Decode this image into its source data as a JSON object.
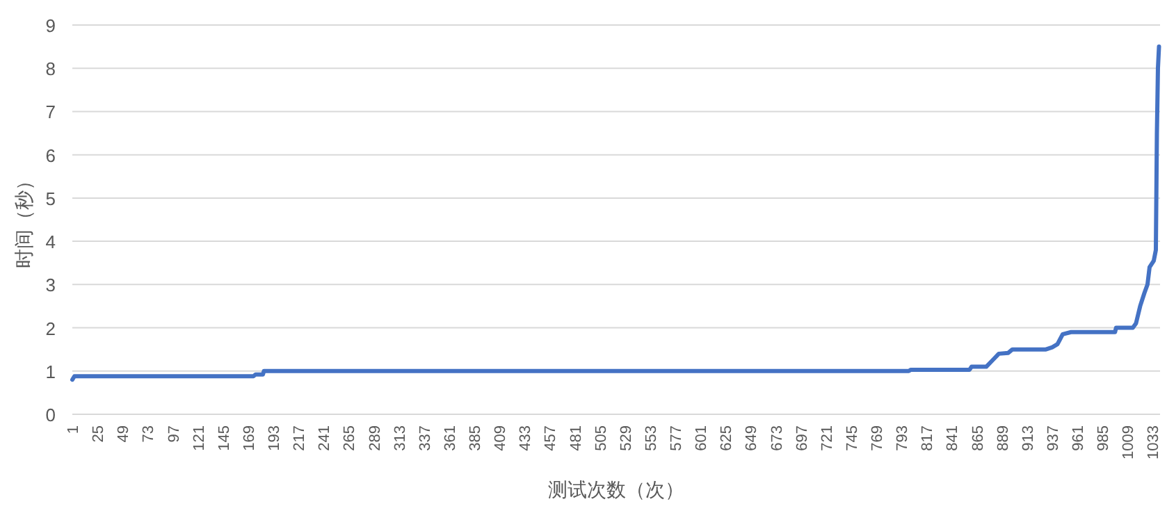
{
  "chart_data": {
    "type": "line",
    "xlabel": "测试次数（次）",
    "ylabel": "时间（秒）",
    "xlim": [
      1,
      1040
    ],
    "ylim": [
      0,
      9
    ],
    "xticks": [
      1,
      25,
      49,
      73,
      97,
      121,
      145,
      169,
      193,
      217,
      241,
      265,
      289,
      313,
      337,
      361,
      385,
      409,
      433,
      457,
      481,
      505,
      529,
      553,
      577,
      601,
      625,
      649,
      673,
      697,
      721,
      745,
      769,
      793,
      817,
      841,
      865,
      889,
      913,
      937,
      961,
      985,
      1009,
      1033
    ],
    "yticks": [
      0,
      1,
      2,
      3,
      4,
      5,
      6,
      7,
      8,
      9
    ],
    "grid": "y",
    "marker": "none",
    "line_style": "solid",
    "series": [
      {
        "color": "#4472c4",
        "x": [
          1,
          3,
          174,
          176,
          183,
          184,
          800,
          802,
          858,
          860,
          874,
          880,
          886,
          895,
          899,
          931,
          937,
          942,
          947,
          955,
          997,
          998,
          1014,
          1017,
          1021,
          1025,
          1028,
          1030,
          1034,
          1036,
          1037,
          1038,
          1039
        ],
        "values": [
          0.8,
          0.88,
          0.88,
          0.92,
          0.92,
          1.0,
          1.0,
          1.03,
          1.03,
          1.1,
          1.1,
          1.25,
          1.4,
          1.42,
          1.5,
          1.5,
          1.55,
          1.62,
          1.85,
          1.9,
          1.9,
          2.0,
          2.0,
          2.1,
          2.5,
          2.8,
          3.0,
          3.4,
          3.55,
          3.8,
          6.5,
          8.0,
          8.5
        ]
      }
    ]
  }
}
